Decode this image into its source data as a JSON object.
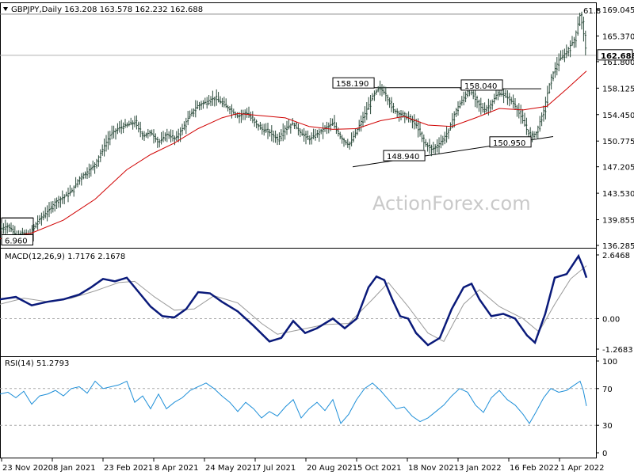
{
  "chart_data": [
    {
      "type": "candlestick",
      "pane": "price",
      "symbol": "GBPJPY",
      "timeframe": "Daily",
      "ohlc": [
        "163.208",
        "163.578",
        "162.232",
        "162.688"
      ],
      "current_price": "162.688",
      "ylim": [
        136.285,
        169.045
      ],
      "y_ticks": [
        "169.045",
        "165.370",
        "161.800",
        "158.125",
        "154.450",
        "150.775",
        "147.205",
        "143.530",
        "139.855",
        "136.285"
      ],
      "x_ticks": [
        "23 Nov 2020",
        "8 Jan 2021",
        "23 Feb 2021",
        "8 Apr 2021",
        "24 May 2021",
        "7 Jul 2021",
        "20 Aug 2021",
        "5 Oct 2021",
        "18 Nov 2021",
        "3 Jan 2022",
        "16 Feb 2022",
        "1 Apr 2022"
      ],
      "close_path": [
        [
          0,
          138.6
        ],
        [
          10,
          139.0
        ],
        [
          20,
          137.7
        ],
        [
          30,
          138.0
        ],
        [
          35,
          137.2
        ],
        [
          40,
          138.5
        ],
        [
          50,
          140.0
        ],
        [
          60,
          141.0
        ],
        [
          70,
          142.4
        ],
        [
          80,
          143.0
        ],
        [
          90,
          143.8
        ],
        [
          100,
          145.6
        ],
        [
          110,
          146.5
        ],
        [
          120,
          147.6
        ],
        [
          130,
          149.8
        ],
        [
          140,
          151.8
        ],
        [
          150,
          152.6
        ],
        [
          160,
          153.0
        ],
        [
          170,
          153.4
        ],
        [
          180,
          151.5
        ],
        [
          190,
          152.0
        ],
        [
          200,
          150.5
        ],
        [
          210,
          151.8
        ],
        [
          220,
          151.0
        ],
        [
          230,
          152.5
        ],
        [
          240,
          154.5
        ],
        [
          250,
          155.8
        ],
        [
          260,
          156.2
        ],
        [
          270,
          156.8
        ],
        [
          280,
          156.0
        ],
        [
          290,
          155.2
        ],
        [
          300,
          154.2
        ],
        [
          310,
          154.8
        ],
        [
          320,
          153.5
        ],
        [
          330,
          152.4
        ],
        [
          340,
          152.0
        ],
        [
          350,
          151.0
        ],
        [
          360,
          152.6
        ],
        [
          370,
          153.2
        ],
        [
          380,
          151.8
        ],
        [
          390,
          151.0
        ],
        [
          400,
          151.8
        ],
        [
          410,
          152.6
        ],
        [
          420,
          153.2
        ],
        [
          430,
          151.2
        ],
        [
          440,
          150.2
        ],
        [
          450,
          152.2
        ],
        [
          460,
          154.5
        ],
        [
          470,
          157.0
        ],
        [
          478,
          158.19
        ],
        [
          485,
          157.5
        ],
        [
          495,
          155.2
        ],
        [
          505,
          154.5
        ],
        [
          515,
          154.0
        ],
        [
          525,
          153.0
        ],
        [
          535,
          150.5
        ],
        [
          545,
          149.6
        ],
        [
          555,
          150.5
        ],
        [
          565,
          152.0
        ],
        [
          575,
          155.0
        ],
        [
          585,
          156.8
        ],
        [
          592,
          158.04
        ],
        [
          600,
          156.5
        ],
        [
          610,
          155.0
        ],
        [
          620,
          156.0
        ],
        [
          628,
          157.5
        ],
        [
          638,
          157.0
        ],
        [
          648,
          156.0
        ],
        [
          658,
          154.0
        ],
        [
          668,
          151.5
        ],
        [
          676,
          151.8
        ],
        [
          686,
          155.0
        ],
        [
          695,
          159.5
        ],
        [
          705,
          162.0
        ],
        [
          715,
          163.2
        ],
        [
          725,
          165.0
        ],
        [
          732,
          168.4
        ],
        [
          736,
          166.0
        ],
        [
          740,
          162.7
        ]
      ],
      "ma_path": [
        [
          0,
          137.2
        ],
        [
          40,
          138.0
        ],
        [
          80,
          139.8
        ],
        [
          120,
          142.7
        ],
        [
          160,
          146.8
        ],
        [
          190,
          148.9
        ],
        [
          220,
          150.5
        ],
        [
          250,
          152.5
        ],
        [
          280,
          154.0
        ],
        [
          300,
          154.6
        ],
        [
          330,
          154.3
        ],
        [
          360,
          154.0
        ],
        [
          390,
          152.8
        ],
        [
          420,
          152.4
        ],
        [
          450,
          152.5
        ],
        [
          480,
          153.6
        ],
        [
          510,
          154.2
        ],
        [
          540,
          153.0
        ],
        [
          570,
          152.8
        ],
        [
          600,
          154.0
        ],
        [
          630,
          155.3
        ],
        [
          660,
          155.1
        ],
        [
          690,
          155.6
        ],
        [
          715,
          158.0
        ],
        [
          740,
          160.5
        ]
      ],
      "levels": [
        {
          "label": "158.190",
          "value": 158.19
        },
        {
          "label": "158.040",
          "value": 158.04
        },
        {
          "label": "148.940",
          "value": 148.94
        },
        {
          "label": "150.950",
          "value": 150.95
        },
        {
          "label": "6.960",
          "value": 136.96
        },
        {
          "label": "61.8",
          "value": 168.4
        }
      ],
      "watermark": "ActionForex.com"
    },
    {
      "type": "line",
      "pane": "macd",
      "label": "MACD(12,26,9) 1.7176 2.1678",
      "y_ticks": [
        "2.6468",
        "0.00",
        "-1.2683"
      ],
      "ylim": [
        -1.2683,
        2.6468
      ],
      "macd_path": [
        [
          0,
          0.8
        ],
        [
          20,
          0.9
        ],
        [
          40,
          0.55
        ],
        [
          60,
          0.7
        ],
        [
          80,
          0.8
        ],
        [
          100,
          1.0
        ],
        [
          115,
          1.3
        ],
        [
          130,
          1.65
        ],
        [
          145,
          1.55
        ],
        [
          160,
          1.7
        ],
        [
          175,
          1.1
        ],
        [
          190,
          0.5
        ],
        [
          205,
          0.1
        ],
        [
          220,
          0.05
        ],
        [
          235,
          0.4
        ],
        [
          250,
          1.1
        ],
        [
          265,
          1.05
        ],
        [
          280,
          0.7
        ],
        [
          300,
          0.3
        ],
        [
          320,
          -0.3
        ],
        [
          340,
          -0.95
        ],
        [
          355,
          -0.8
        ],
        [
          370,
          -0.1
        ],
        [
          385,
          -0.6
        ],
        [
          400,
          -0.4
        ],
        [
          420,
          0.0
        ],
        [
          435,
          -0.4
        ],
        [
          450,
          0.0
        ],
        [
          465,
          1.3
        ],
        [
          475,
          1.75
        ],
        [
          485,
          1.6
        ],
        [
          495,
          0.8
        ],
        [
          505,
          0.1
        ],
        [
          515,
          0.0
        ],
        [
          525,
          -0.6
        ],
        [
          540,
          -1.1
        ],
        [
          555,
          -0.8
        ],
        [
          570,
          0.4
        ],
        [
          585,
          1.3
        ],
        [
          595,
          1.45
        ],
        [
          605,
          0.8
        ],
        [
          620,
          0.1
        ],
        [
          635,
          0.2
        ],
        [
          650,
          0.0
        ],
        [
          665,
          -0.7
        ],
        [
          675,
          -1.0
        ],
        [
          688,
          0.2
        ],
        [
          700,
          1.7
        ],
        [
          715,
          1.85
        ],
        [
          730,
          2.6
        ],
        [
          735,
          2.2
        ],
        [
          740,
          1.7
        ]
      ],
      "signal_path": [
        [
          0,
          0.6
        ],
        [
          30,
          0.85
        ],
        [
          60,
          0.7
        ],
        [
          90,
          0.85
        ],
        [
          120,
          1.15
        ],
        [
          150,
          1.5
        ],
        [
          170,
          1.55
        ],
        [
          195,
          0.9
        ],
        [
          220,
          0.35
        ],
        [
          245,
          0.4
        ],
        [
          270,
          0.95
        ],
        [
          300,
          0.65
        ],
        [
          330,
          -0.2
        ],
        [
          350,
          -0.65
        ],
        [
          380,
          -0.45
        ],
        [
          410,
          -0.25
        ],
        [
          440,
          -0.2
        ],
        [
          470,
          0.8
        ],
        [
          490,
          1.5
        ],
        [
          515,
          0.5
        ],
        [
          540,
          -0.6
        ],
        [
          560,
          -0.95
        ],
        [
          585,
          0.6
        ],
        [
          605,
          1.2
        ],
        [
          630,
          0.5
        ],
        [
          660,
          0.0
        ],
        [
          680,
          -0.55
        ],
        [
          700,
          0.6
        ],
        [
          720,
          1.65
        ],
        [
          740,
          2.2
        ]
      ]
    },
    {
      "type": "line",
      "pane": "rsi",
      "label": "RSI(14) 51.2793",
      "y_ticks": [
        "100",
        "70",
        "30",
        "0"
      ],
      "ylim": [
        0,
        100
      ],
      "levels": [
        70,
        30
      ],
      "rsi_path": [
        [
          0,
          64
        ],
        [
          10,
          66
        ],
        [
          20,
          60
        ],
        [
          30,
          67
        ],
        [
          40,
          53
        ],
        [
          50,
          62
        ],
        [
          60,
          64
        ],
        [
          70,
          68
        ],
        [
          80,
          62
        ],
        [
          90,
          70
        ],
        [
          100,
          72
        ],
        [
          110,
          65
        ],
        [
          120,
          78
        ],
        [
          130,
          70
        ],
        [
          140,
          72
        ],
        [
          150,
          74
        ],
        [
          160,
          78
        ],
        [
          170,
          55
        ],
        [
          180,
          62
        ],
        [
          190,
          48
        ],
        [
          200,
          64
        ],
        [
          210,
          48
        ],
        [
          220,
          55
        ],
        [
          230,
          60
        ],
        [
          240,
          68
        ],
        [
          250,
          72
        ],
        [
          260,
          76
        ],
        [
          270,
          70
        ],
        [
          280,
          62
        ],
        [
          290,
          55
        ],
        [
          300,
          45
        ],
        [
          310,
          55
        ],
        [
          320,
          48
        ],
        [
          330,
          38
        ],
        [
          340,
          45
        ],
        [
          350,
          40
        ],
        [
          360,
          50
        ],
        [
          370,
          58
        ],
        [
          380,
          38
        ],
        [
          390,
          48
        ],
        [
          400,
          55
        ],
        [
          410,
          46
        ],
        [
          420,
          58
        ],
        [
          430,
          32
        ],
        [
          440,
          42
        ],
        [
          450,
          58
        ],
        [
          460,
          70
        ],
        [
          470,
          76
        ],
        [
          480,
          68
        ],
        [
          490,
          58
        ],
        [
          500,
          48
        ],
        [
          510,
          50
        ],
        [
          520,
          40
        ],
        [
          530,
          34
        ],
        [
          540,
          38
        ],
        [
          550,
          45
        ],
        [
          560,
          52
        ],
        [
          570,
          62
        ],
        [
          580,
          70
        ],
        [
          590,
          66
        ],
        [
          600,
          52
        ],
        [
          610,
          44
        ],
        [
          620,
          60
        ],
        [
          630,
          68
        ],
        [
          640,
          58
        ],
        [
          650,
          52
        ],
        [
          660,
          42
        ],
        [
          668,
          32
        ],
        [
          676,
          44
        ],
        [
          686,
          60
        ],
        [
          695,
          70
        ],
        [
          705,
          66
        ],
        [
          715,
          68
        ],
        [
          725,
          74
        ],
        [
          732,
          78
        ],
        [
          736,
          68
        ],
        [
          740,
          51
        ]
      ]
    }
  ]
}
